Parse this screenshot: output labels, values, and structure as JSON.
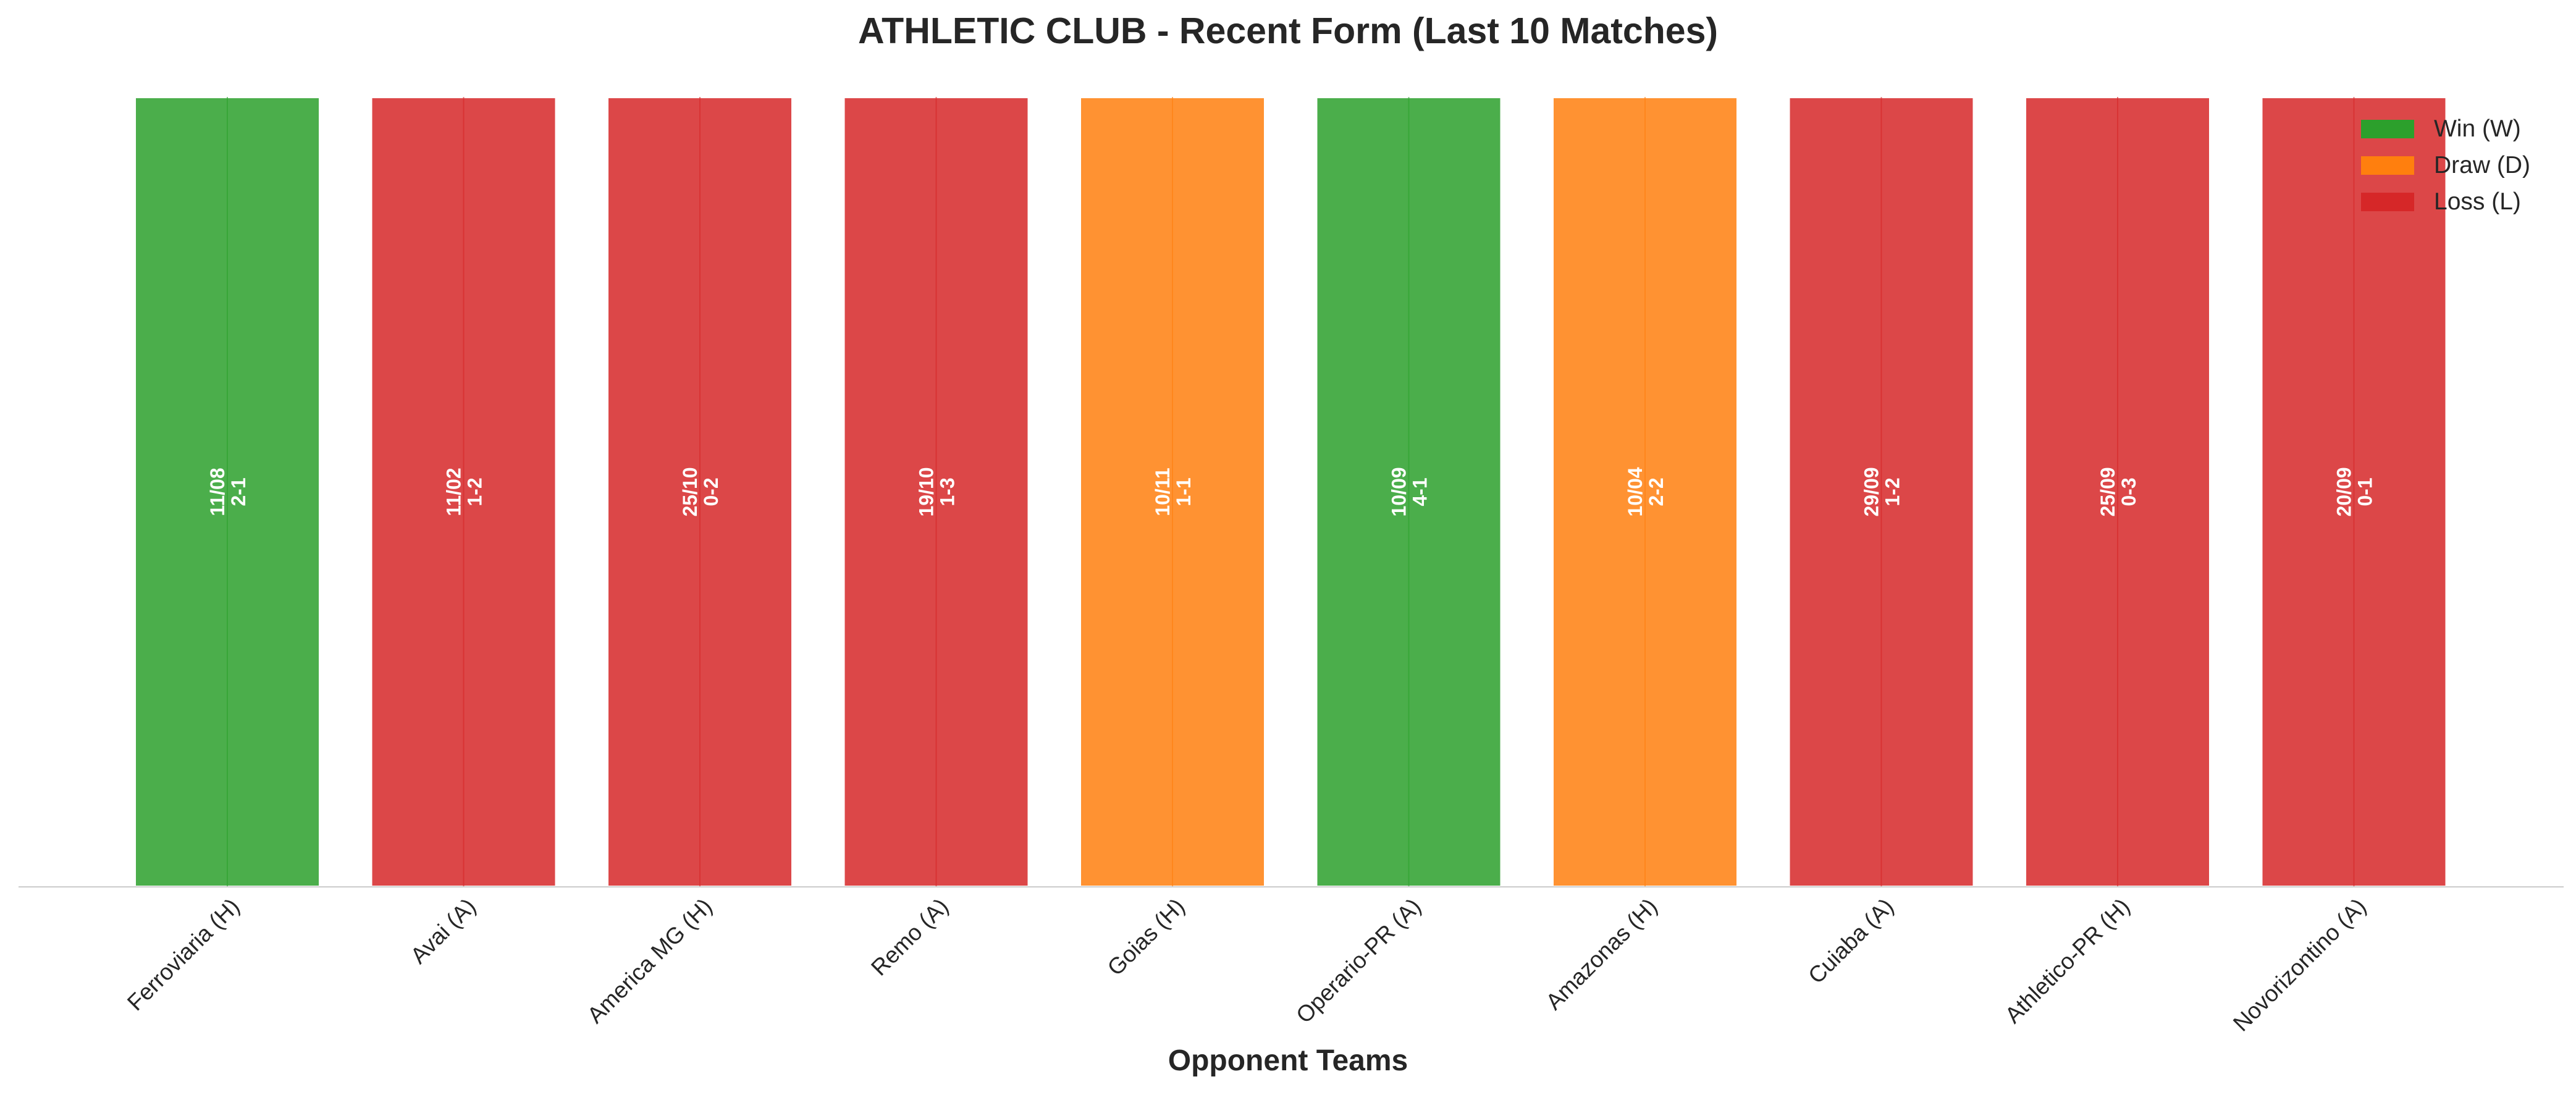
{
  "chart_data": {
    "type": "bar",
    "title": "ATHLETIC CLUB - Recent Form (Last 10 Matches)",
    "xlabel": "Opponent Teams",
    "ylabel": "",
    "ylim": [
      0,
      1
    ],
    "grid": false,
    "legend_position": "top-right",
    "categories": [
      "Ferroviaria (H)",
      "Avai (A)",
      "America MG (H)",
      "Remo (A)",
      "Goias (H)",
      "Operario-PR (A)",
      "Amazonas (H)",
      "Cuiaba (A)",
      "Athletico-PR (H)",
      "Novorizontino (A)"
    ],
    "values": [
      1,
      1,
      1,
      1,
      1,
      1,
      1,
      1,
      1,
      1
    ],
    "results": [
      "W",
      "L",
      "L",
      "L",
      "D",
      "W",
      "D",
      "L",
      "L",
      "L"
    ],
    "dates": [
      "11/08",
      "11/02",
      "25/10",
      "19/10",
      "10/11",
      "10/09",
      "10/04",
      "29/09",
      "25/09",
      "20/09"
    ],
    "scores": [
      "2-1",
      "1-2",
      "0-2",
      "1-3",
      "1-1",
      "4-1",
      "2-2",
      "1-2",
      "0-3",
      "0-1"
    ],
    "legend": [
      {
        "key": "W",
        "label": "Win (W)",
        "color": "#2ca02c"
      },
      {
        "key": "D",
        "label": "Draw (D)",
        "color": "#ff7f0e"
      },
      {
        "key": "L",
        "label": "Loss (L)",
        "color": "#d62728"
      }
    ]
  }
}
